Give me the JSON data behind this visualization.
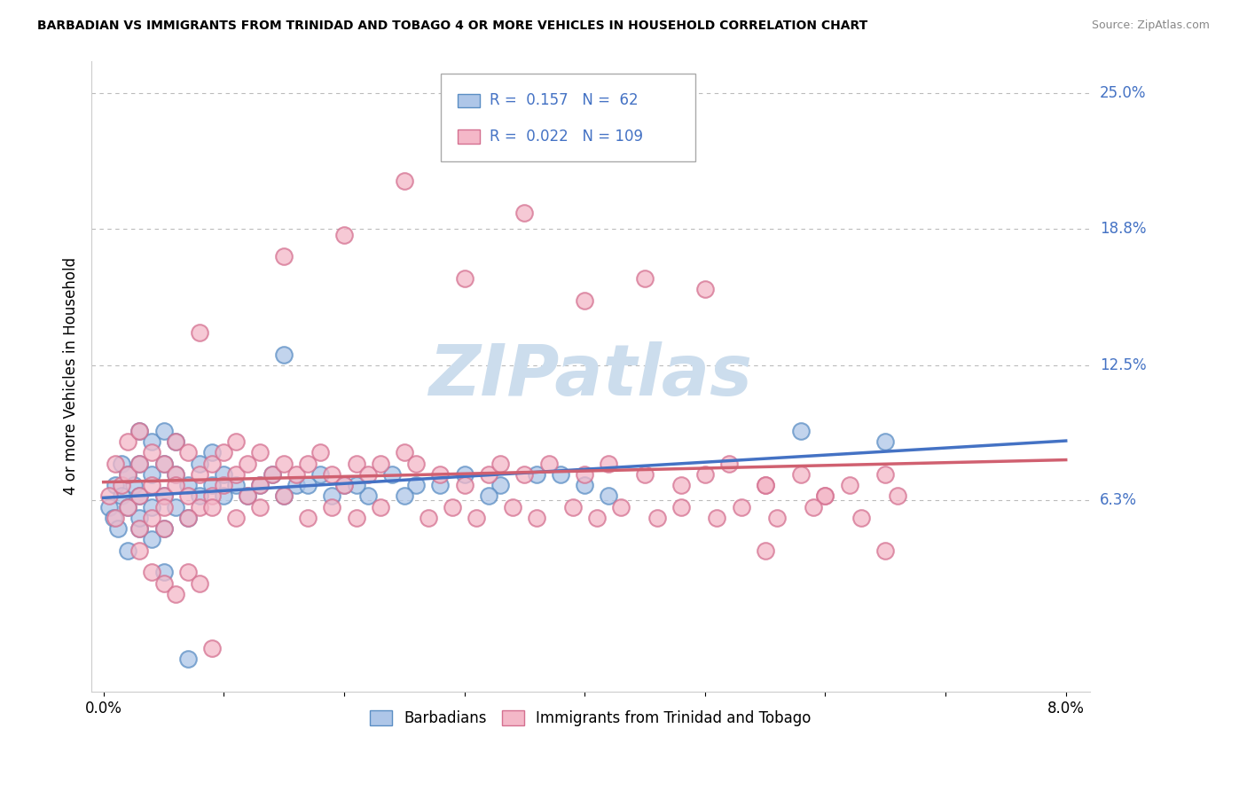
{
  "title": "BARBADIAN VS IMMIGRANTS FROM TRINIDAD AND TOBAGO 4 OR MORE VEHICLES IN HOUSEHOLD CORRELATION CHART",
  "source": "Source: ZipAtlas.com",
  "ylabel": "4 or more Vehicles in Household",
  "xlim": [
    -0.001,
    0.082
  ],
  "ylim": [
    -0.025,
    0.265
  ],
  "ytick_labels": [
    "6.3%",
    "12.5%",
    "18.8%",
    "25.0%"
  ],
  "ytick_values": [
    0.063,
    0.125,
    0.188,
    0.25
  ],
  "legend_label1": "Barbadians",
  "legend_label2": "Immigrants from Trinidad and Tobago",
  "R1": 0.157,
  "N1": 62,
  "R2": 0.022,
  "N2": 109,
  "color1": "#aec6e8",
  "color2": "#f4b8c8",
  "edge_color1": "#5b8ec4",
  "edge_color2": "#d47090",
  "line_color1": "#4472c4",
  "line_color2": "#d06070",
  "watermark": "ZIPatlas",
  "watermark_color": "#ccdded",
  "background_color": "#ffffff",
  "blue_x": [
    0.0005,
    0.0008,
    0.001,
    0.0012,
    0.0015,
    0.0015,
    0.002,
    0.002,
    0.002,
    0.0025,
    0.003,
    0.003,
    0.003,
    0.003,
    0.003,
    0.004,
    0.004,
    0.004,
    0.004,
    0.005,
    0.005,
    0.005,
    0.005,
    0.006,
    0.006,
    0.006,
    0.007,
    0.007,
    0.008,
    0.008,
    0.009,
    0.009,
    0.01,
    0.01,
    0.011,
    0.012,
    0.013,
    0.014,
    0.015,
    0.016,
    0.018,
    0.02,
    0.022,
    0.024,
    0.026,
    0.03,
    0.033,
    0.036,
    0.04,
    0.042,
    0.015,
    0.017,
    0.019,
    0.021,
    0.025,
    0.028,
    0.032,
    0.038,
    0.058,
    0.065,
    0.005,
    0.007
  ],
  "blue_y": [
    0.06,
    0.055,
    0.07,
    0.05,
    0.065,
    0.08,
    0.06,
    0.075,
    0.04,
    0.07,
    0.05,
    0.065,
    0.08,
    0.095,
    0.055,
    0.06,
    0.075,
    0.045,
    0.09,
    0.05,
    0.065,
    0.08,
    0.095,
    0.06,
    0.075,
    0.09,
    0.055,
    0.07,
    0.065,
    0.08,
    0.07,
    0.085,
    0.065,
    0.075,
    0.07,
    0.065,
    0.07,
    0.075,
    0.065,
    0.07,
    0.075,
    0.07,
    0.065,
    0.075,
    0.07,
    0.075,
    0.07,
    0.075,
    0.07,
    0.065,
    0.13,
    0.07,
    0.065,
    0.07,
    0.065,
    0.07,
    0.065,
    0.075,
    0.095,
    0.09,
    0.03,
    -0.01
  ],
  "pink_x": [
    0.0005,
    0.001,
    0.001,
    0.0015,
    0.002,
    0.002,
    0.002,
    0.003,
    0.003,
    0.003,
    0.003,
    0.004,
    0.004,
    0.004,
    0.005,
    0.005,
    0.005,
    0.006,
    0.006,
    0.006,
    0.007,
    0.007,
    0.008,
    0.008,
    0.008,
    0.009,
    0.009,
    0.01,
    0.01,
    0.011,
    0.011,
    0.012,
    0.012,
    0.013,
    0.013,
    0.014,
    0.015,
    0.015,
    0.016,
    0.017,
    0.018,
    0.019,
    0.02,
    0.021,
    0.022,
    0.023,
    0.025,
    0.026,
    0.028,
    0.03,
    0.032,
    0.033,
    0.035,
    0.037,
    0.04,
    0.042,
    0.045,
    0.048,
    0.05,
    0.052,
    0.055,
    0.058,
    0.06,
    0.062,
    0.065,
    0.015,
    0.02,
    0.025,
    0.03,
    0.035,
    0.04,
    0.045,
    0.05,
    0.055,
    0.06,
    0.065,
    0.005,
    0.007,
    0.009,
    0.011,
    0.013,
    0.017,
    0.019,
    0.021,
    0.023,
    0.027,
    0.029,
    0.031,
    0.034,
    0.036,
    0.039,
    0.041,
    0.043,
    0.046,
    0.048,
    0.051,
    0.053,
    0.056,
    0.059,
    0.063,
    0.003,
    0.004,
    0.005,
    0.006,
    0.007,
    0.008,
    0.009,
    0.055,
    0.066
  ],
  "pink_y": [
    0.065,
    0.055,
    0.08,
    0.07,
    0.06,
    0.075,
    0.09,
    0.05,
    0.065,
    0.08,
    0.095,
    0.055,
    0.07,
    0.085,
    0.065,
    0.08,
    0.06,
    0.075,
    0.09,
    0.07,
    0.085,
    0.065,
    0.06,
    0.075,
    0.14,
    0.065,
    0.08,
    0.07,
    0.085,
    0.075,
    0.09,
    0.065,
    0.08,
    0.07,
    0.085,
    0.075,
    0.065,
    0.08,
    0.075,
    0.08,
    0.085,
    0.075,
    0.07,
    0.08,
    0.075,
    0.08,
    0.085,
    0.08,
    0.075,
    0.07,
    0.075,
    0.08,
    0.075,
    0.08,
    0.075,
    0.08,
    0.075,
    0.07,
    0.075,
    0.08,
    0.07,
    0.075,
    0.065,
    0.07,
    0.075,
    0.175,
    0.185,
    0.21,
    0.165,
    0.195,
    0.155,
    0.165,
    0.16,
    0.07,
    0.065,
    0.04,
    0.05,
    0.055,
    0.06,
    0.055,
    0.06,
    0.055,
    0.06,
    0.055,
    0.06,
    0.055,
    0.06,
    0.055,
    0.06,
    0.055,
    0.06,
    0.055,
    0.06,
    0.055,
    0.06,
    0.055,
    0.06,
    0.055,
    0.06,
    0.055,
    0.04,
    0.03,
    0.025,
    0.02,
    0.03,
    0.025,
    -0.005,
    0.04,
    0.065
  ]
}
